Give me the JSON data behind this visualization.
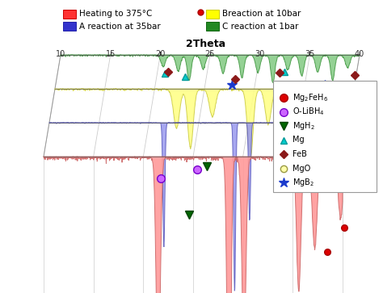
{
  "xlabel": "2Theta",
  "top_legend": [
    {
      "label": "Heating to 375°C",
      "color": "#ff3333",
      "edge": "#cc0000"
    },
    {
      "label": "Breaction at 10bar",
      "color": "#ffff00",
      "edge": "#cccc00"
    },
    {
      "label": "A reaction at 35bar",
      "color": "#3333cc",
      "edge": "#2222aa"
    },
    {
      "label": "C reaction at 1bar",
      "color": "#228822",
      "edge": "#116611"
    }
  ],
  "inset_legend": [
    {
      "label": "MgB$_2$",
      "marker": "*",
      "mfc": "#1a3acc",
      "mec": "#1a3acc",
      "ms": 9
    },
    {
      "label": "MgO",
      "marker": "o",
      "mfc": "#ffffaa",
      "mec": "#999944",
      "ms": 6
    },
    {
      "label": "FeB",
      "marker": "D",
      "mfc": "#8b1a1a",
      "mec": "#8b1a1a",
      "ms": 5
    },
    {
      "label": "Mg",
      "marker": "^",
      "mfc": "#00cccc",
      "mec": "#009999",
      "ms": 6
    },
    {
      "label": "MgH$_2$",
      "marker": "v",
      "mfc": "#006600",
      "mec": "#004400",
      "ms": 7
    },
    {
      "label": "O-LiBH$_4$",
      "marker": "o",
      "mfc": "#cc66ff",
      "mec": "#7700cc",
      "ms": 7
    },
    {
      "label": "Mg$_2$FeH$_6$",
      "marker": "o",
      "mfc": "#dd0000",
      "mec": "#aa0000",
      "ms": 7
    }
  ],
  "layer_red": {
    "fc": "#ff9999",
    "ec": "#cc6666",
    "alpha": 0.9
  },
  "layer_yellow": {
    "fc": "#ffff88",
    "ec": "#cccc44",
    "alpha": 0.9
  },
  "layer_blue": {
    "fc": "#9999ee",
    "ec": "#5555bb",
    "alpha": 0.85
  },
  "layer_green": {
    "fc": "#88cc88",
    "ec": "#449944",
    "alpha": 0.9
  },
  "grid_color": "#cccccc",
  "tick_color": "#333333"
}
